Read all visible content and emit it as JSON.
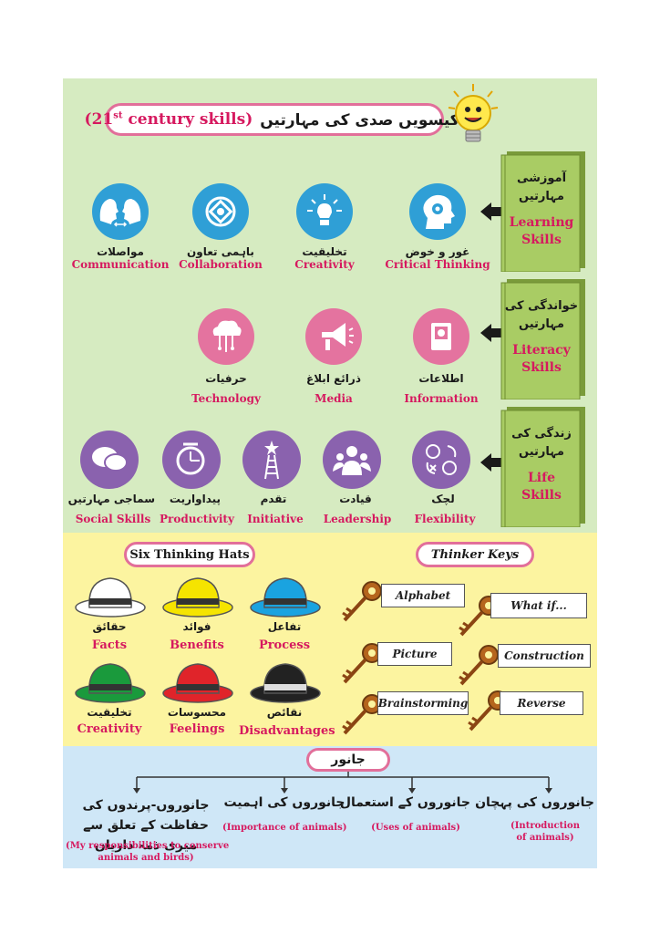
{
  "header": {
    "urdu_title": "اکیسویں صدی کی مہارتیں",
    "english_title_pre": "(21",
    "english_title_sup": "st",
    "english_title_post": " century skills)"
  },
  "books": [
    {
      "urdu": "آموزشی مہارتیں",
      "english_1": "Learning",
      "english_2": "Skills"
    },
    {
      "urdu": "خواندگی کی مہارتیں",
      "english_1": "Literacy",
      "english_2": "Skills"
    },
    {
      "urdu": "زندگی کی مہارتیں",
      "english_1": "Life",
      "english_2": "Skills"
    }
  ],
  "learning_skills": [
    {
      "urdu": "مواصلات",
      "english": "Communication",
      "icon": "heads-facing-icon"
    },
    {
      "urdu": "باہمی تعاون",
      "english": "Collaboration",
      "icon": "hands-together-icon"
    },
    {
      "urdu": "تخلیقیت",
      "english": "Creativity",
      "icon": "lightbulb-icon"
    },
    {
      "urdu": "غور و خوض",
      "english": "Critical Thinking",
      "icon": "head-gear-icon"
    }
  ],
  "literacy_skills": [
    {
      "urdu": "حرفیات",
      "english": "Technology",
      "icon": "cloud-circuit-icon"
    },
    {
      "urdu": "ذرائع ابلاغ",
      "english": "Media",
      "icon": "megaphone-icon"
    },
    {
      "urdu": "اطلاعات",
      "english": "Information",
      "icon": "book-icon"
    }
  ],
  "life_skills": [
    {
      "urdu": "سماجی مہارتیں",
      "english": "Social Skills",
      "icon": "speech-bubbles-icon"
    },
    {
      "urdu": "پیداواریت",
      "english": "Productivity",
      "icon": "clock-icon"
    },
    {
      "urdu": "تقدم",
      "english": "Initiative",
      "icon": "ladder-star-icon"
    },
    {
      "urdu": "قیادت",
      "english": "Leadership",
      "icon": "people-group-icon"
    },
    {
      "urdu": "لچک",
      "english": "Flexibility",
      "icon": "arrows-cycle-icon"
    }
  ],
  "six_hats": {
    "title": "Six Thinking Hats",
    "hats": [
      {
        "urdu": "حقائق",
        "english": "Facts",
        "color": "#ffffff"
      },
      {
        "urdu": "فوائد",
        "english": "Benefits",
        "color": "#f5e400"
      },
      {
        "urdu": "تفاعل",
        "english": "Process",
        "color": "#1aa3e0"
      },
      {
        "urdu": "تخلیقیت",
        "english": "Creativity",
        "color": "#1a9a3c"
      },
      {
        "urdu": "محسوسات",
        "english": "Feelings",
        "color": "#e0242a"
      },
      {
        "urdu": "نقائص",
        "english": "Disadvantages",
        "color": "#222222"
      }
    ]
  },
  "thinker_keys": {
    "title": "Thinker Keys",
    "keys": [
      "Alphabet",
      "What if...",
      "Picture",
      "Construction",
      "Brainstorming",
      "Reverse"
    ]
  },
  "animals": {
    "root": "جانور",
    "branches": [
      {
        "urdu": "جانوروں-پرندوں کی حفاظت کے تعلق سے میری ذمہ داریاں",
        "english_1": "(My responsibilities to conserve",
        "english_2": "animals and birds)"
      },
      {
        "urdu": "جانوروں کی اہمیت",
        "english_1": "(Importance of animals)",
        "english_2": ""
      },
      {
        "urdu": "جانوروں کے استعمال",
        "english_1": "(Uses of animals)",
        "english_2": ""
      },
      {
        "urdu": "جانوروں کی پہچان",
        "english_1": "(Introduction",
        "english_2": "of animals)"
      }
    ]
  }
}
